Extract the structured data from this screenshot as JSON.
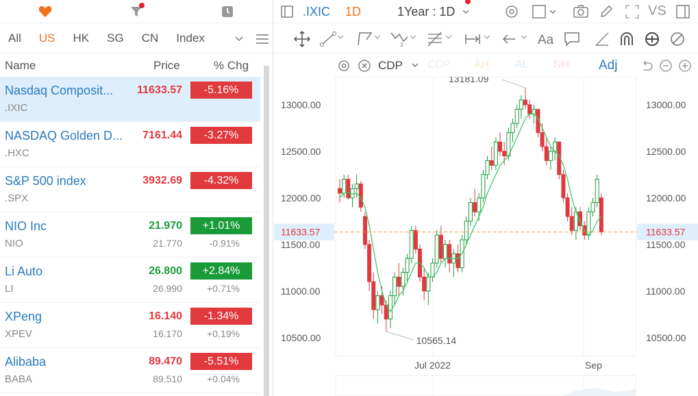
{
  "top_icons": [
    "heart-icon",
    "filter-icon",
    "clock-icon"
  ],
  "markets": {
    "tabs": [
      "All",
      "US",
      "HK",
      "SG",
      "CN",
      "Index"
    ],
    "active": "US"
  },
  "columns": {
    "name": "Name",
    "price": "Price",
    "chg": "% Chg"
  },
  "watchlist": [
    {
      "name": "Nasdaq Composit...",
      "code": ".IXIC",
      "price": "11633.57",
      "chg": "-5.16%",
      "price2": "",
      "chg2": "",
      "dir": "down"
    },
    {
      "name": "NASDAQ Golden D...",
      "code": ".HXC",
      "price": "7161.44",
      "chg": "-3.27%",
      "price2": "",
      "chg2": "",
      "dir": "down"
    },
    {
      "name": "S&P 500 index",
      "code": ".SPX",
      "price": "3932.69",
      "chg": "-4.32%",
      "price2": "",
      "chg2": "",
      "dir": "down"
    },
    {
      "name": "NIO Inc",
      "code": "NIO",
      "price": "21.970",
      "chg": "+1.01%",
      "price2": "21.770",
      "chg2": "-0.91%",
      "dir": "up"
    },
    {
      "name": "Li Auto",
      "code": "LI",
      "price": "26.800",
      "chg": "+2.84%",
      "price2": "26.990",
      "chg2": "+0.71%",
      "dir": "up"
    },
    {
      "name": "XPeng",
      "code": "XPEV",
      "price": "16.140",
      "chg": "-1.34%",
      "price2": "16.170",
      "chg2": "+0.19%",
      "dir": "down"
    },
    {
      "name": "Alibaba",
      "code": "BABA",
      "price": "89.470",
      "chg": "-5.51%",
      "price2": "89.510",
      "chg2": "+0.04%",
      "dir": "down"
    }
  ],
  "chart_header": {
    "symbol": ".IXIC",
    "interval": "1D",
    "range": "1Year : 1D",
    "vs": "VS"
  },
  "indicator_bar": {
    "overlay": "CDP",
    "faded": [
      "CDP",
      "AH",
      "AL",
      "NH"
    ],
    "adj": "Adj"
  },
  "chart_data": {
    "type": "candlestick",
    "y_ticks": [
      "13000.00",
      "12500.00",
      "12000.00",
      "11500.00",
      "11000.00",
      "10500.00"
    ],
    "x_ticks": [
      "Jul 2022",
      "Sep"
    ],
    "high_label": "13181.09",
    "low_label": "10565.14",
    "last_price": "11633.57",
    "ylim": [
      10300,
      13300
    ],
    "colors": {
      "up": "#1a9b3a",
      "down": "#e0393e",
      "ma": "#3ec96a"
    },
    "candles": [
      [
        12100,
        12200,
        11950,
        12050
      ],
      [
        12050,
        12250,
        12000,
        12200
      ],
      [
        12200,
        12250,
        11980,
        12000
      ],
      [
        12000,
        12150,
        11900,
        12100
      ],
      [
        12100,
        12250,
        12000,
        12150
      ],
      [
        12150,
        12180,
        11850,
        11900
      ],
      [
        11800,
        11850,
        11450,
        11500
      ],
      [
        11500,
        11550,
        11000,
        11100
      ],
      [
        11100,
        11200,
        10700,
        10800
      ],
      [
        10800,
        11000,
        10650,
        10950
      ],
      [
        10950,
        11050,
        10750,
        10850
      ],
      [
        10850,
        10900,
        10565,
        10700
      ],
      [
        10700,
        11000,
        10600,
        10950
      ],
      [
        10950,
        11200,
        10850,
        11150
      ],
      [
        11150,
        11300,
        10950,
        11050
      ],
      [
        11050,
        11250,
        10950,
        11200
      ],
      [
        11200,
        11400,
        11100,
        11350
      ],
      [
        11350,
        11700,
        11300,
        11650
      ],
      [
        11650,
        11700,
        11400,
        11450
      ],
      [
        11450,
        11500,
        11100,
        11150
      ],
      [
        11150,
        11250,
        10900,
        11000
      ],
      [
        11000,
        11200,
        10850,
        11150
      ],
      [
        11150,
        11350,
        11100,
        11300
      ],
      [
        11300,
        11650,
        11250,
        11600
      ],
      [
        11600,
        11700,
        11300,
        11350
      ],
      [
        11350,
        11550,
        11250,
        11500
      ],
      [
        11500,
        11550,
        11200,
        11300
      ],
      [
        11300,
        11450,
        11150,
        11400
      ],
      [
        11400,
        11500,
        11200,
        11250
      ],
      [
        11250,
        11600,
        11200,
        11550
      ],
      [
        11550,
        11800,
        11500,
        11750
      ],
      [
        11750,
        12000,
        11700,
        11950
      ],
      [
        11950,
        12100,
        11800,
        11850
      ],
      [
        11850,
        12050,
        11750,
        12000
      ],
      [
        12000,
        12300,
        11950,
        12250
      ],
      [
        12250,
        12450,
        12200,
        12400
      ],
      [
        12400,
        12550,
        12300,
        12350
      ],
      [
        12350,
        12650,
        12300,
        12600
      ],
      [
        12600,
        12700,
        12450,
        12500
      ],
      [
        12500,
        12600,
        12350,
        12450
      ],
      [
        12450,
        12750,
        12400,
        12700
      ],
      [
        12700,
        12850,
        12600,
        12800
      ],
      [
        12800,
        13000,
        12750,
        12950
      ],
      [
        12950,
        13100,
        12850,
        13050
      ],
      [
        13050,
        13181,
        12950,
        13000
      ],
      [
        13000,
        13050,
        12850,
        12900
      ],
      [
        12900,
        13000,
        12800,
        12950
      ],
      [
        12950,
        12950,
        12650,
        12700
      ],
      [
        12700,
        12800,
        12500,
        12550
      ],
      [
        12550,
        12650,
        12350,
        12400
      ],
      [
        12400,
        12550,
        12300,
        12500
      ],
      [
        12500,
        12650,
        12400,
        12600
      ],
      [
        12600,
        12600,
        12200,
        12250
      ],
      [
        12250,
        12300,
        11950,
        12000
      ],
      [
        12000,
        12050,
        11750,
        11800
      ],
      [
        11800,
        11900,
        11600,
        11650
      ],
      [
        11650,
        11900,
        11550,
        11850
      ],
      [
        11850,
        11900,
        11650,
        11700
      ],
      [
        11700,
        11750,
        11550,
        11600
      ],
      [
        11600,
        11900,
        11550,
        11850
      ],
      [
        11850,
        12000,
        11800,
        11950
      ],
      [
        11950,
        12250,
        11900,
        12200
      ],
      [
        12000,
        12050,
        11600,
        11634
      ]
    ],
    "ma": [
      12000,
      12050,
      12060,
      12040,
      12050,
      12000,
      11900,
      11700,
      11450,
      11200,
      11000,
      10850,
      10780,
      10850,
      10950,
      11000,
      11100,
      11200,
      11300,
      11300,
      11250,
      11150,
      11150,
      11200,
      11300,
      11350,
      11350,
      11350,
      11350,
      11400,
      11500,
      11600,
      11700,
      11800,
      11900,
      12050,
      12150,
      12250,
      12350,
      12400,
      12450,
      12550,
      12650,
      12750,
      12850,
      12900,
      12900,
      12850,
      12750,
      12650,
      12550,
      12500,
      12450,
      12350,
      12200,
      12000,
      11850,
      11750,
      11650,
      11600,
      11650,
      11750,
      11800
    ]
  }
}
